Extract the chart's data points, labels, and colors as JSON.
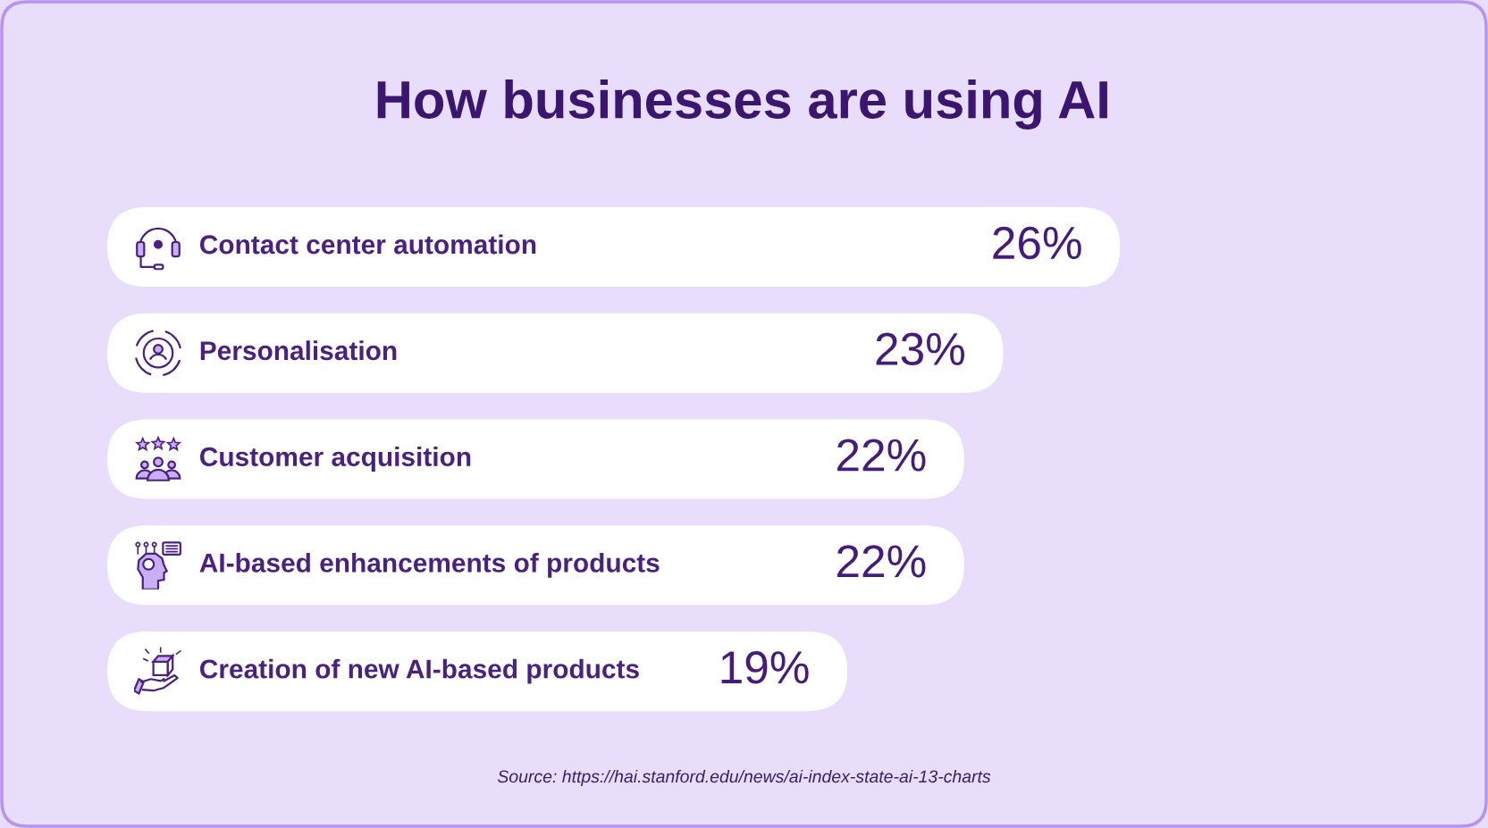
{
  "chart_data": {
    "type": "bar",
    "orientation": "horizontal",
    "title": "How businesses are using AI",
    "categories": [
      "Contact center automation",
      "Personalisation",
      "Customer acquisition",
      "AI-based enhancements of products",
      "Creation of new AI-based products"
    ],
    "values": [
      26,
      23,
      22,
      22,
      19
    ],
    "value_labels": [
      "26%",
      "23%",
      "22%",
      "22%",
      "19%"
    ],
    "color": "#ffffff",
    "annotations": [
      "Source: https://hai.stanford.edu/news/ai-index-state-ai-13-charts"
    ]
  }
}
